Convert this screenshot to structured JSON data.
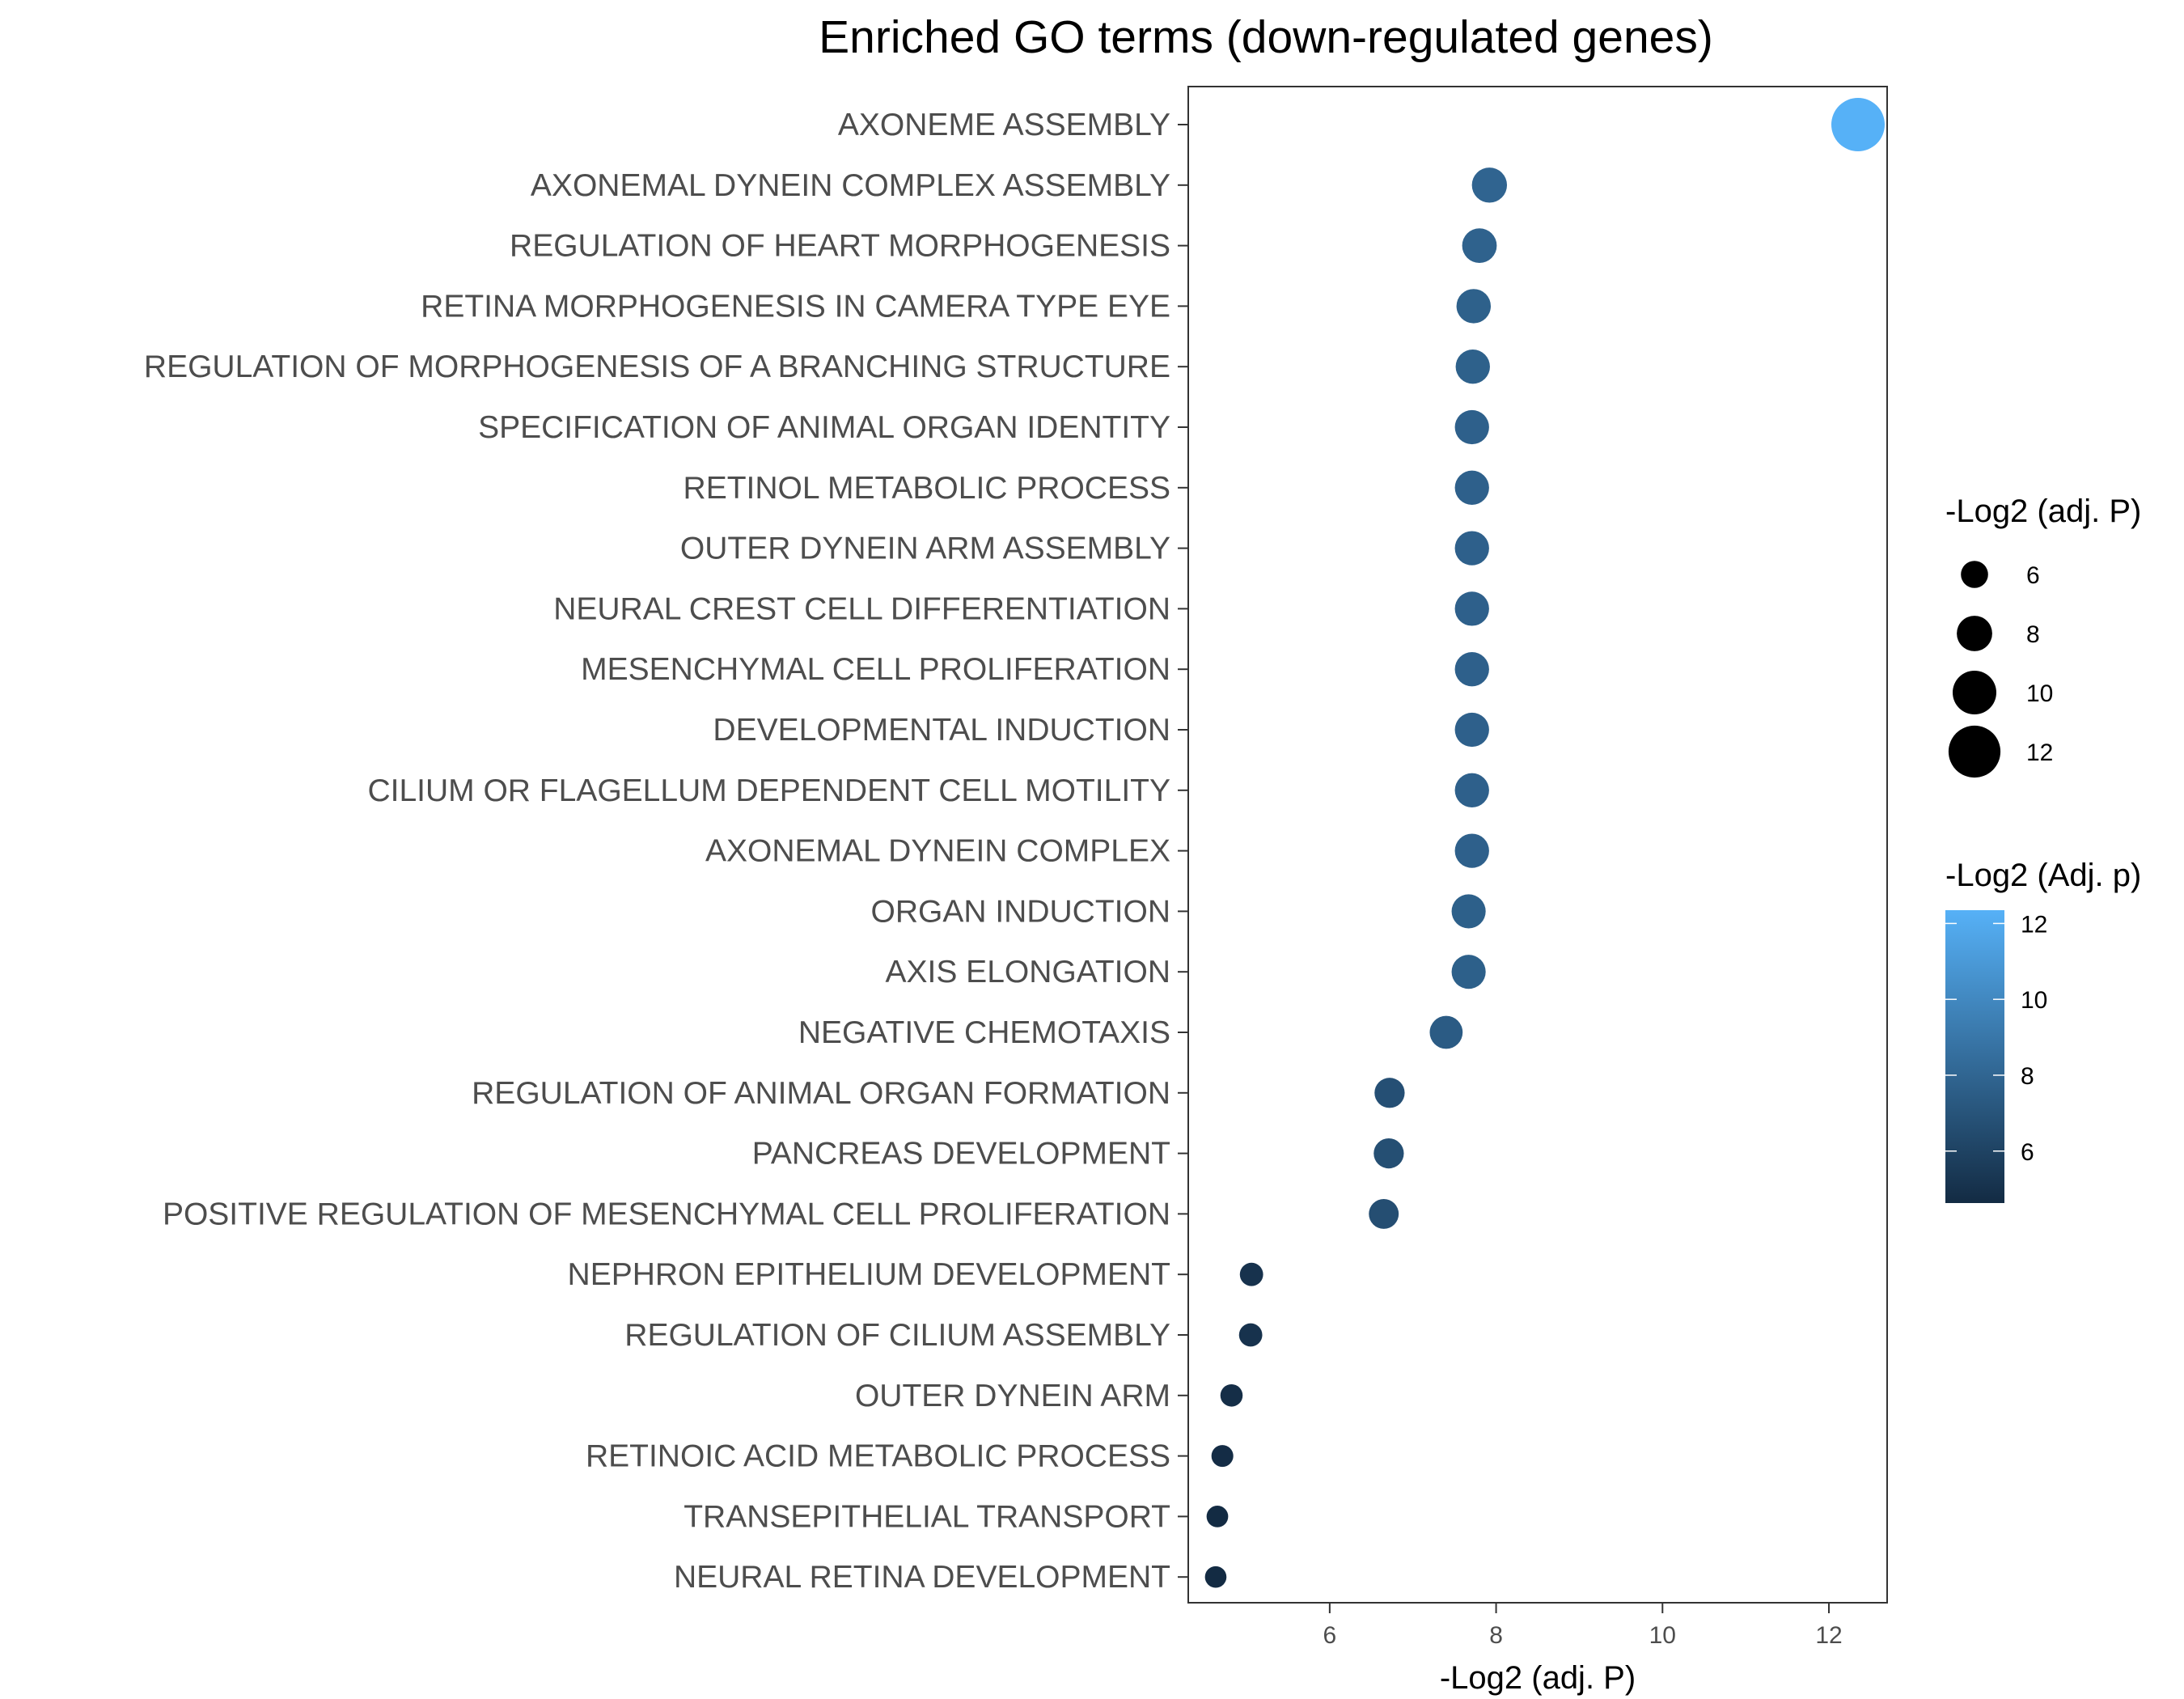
{
  "chart_data": {
    "type": "scatter",
    "title": "Enriched GO terms (down-regulated genes)",
    "xlabel": "-Log2 (adj. P)",
    "xlim": [
      4.3,
      12.7
    ],
    "xticks": [
      6,
      8,
      10,
      12
    ],
    "grid": false,
    "colors": {
      "low": "#132B43",
      "high": "#56B1F7"
    },
    "points": [
      {
        "term": "AXONEME ASSEMBLY",
        "x": 12.35
      },
      {
        "term": "AXONEMAL DYNEIN COMPLEX ASSEMBLY",
        "x": 7.92
      },
      {
        "term": "REGULATION OF HEART MORPHOGENESIS",
        "x": 7.8
      },
      {
        "term": "RETINA MORPHOGENESIS IN CAMERA TYPE EYE",
        "x": 7.73
      },
      {
        "term": "REGULATION OF MORPHOGENESIS OF A BRANCHING STRUCTURE",
        "x": 7.72
      },
      {
        "term": "SPECIFICATION OF ANIMAL ORGAN IDENTITY",
        "x": 7.71
      },
      {
        "term": "RETINOL METABOLIC PROCESS",
        "x": 7.71
      },
      {
        "term": "OUTER DYNEIN ARM ASSEMBLY",
        "x": 7.71
      },
      {
        "term": "NEURAL CREST CELL DIFFERENTIATION",
        "x": 7.71
      },
      {
        "term": "MESENCHYMAL CELL PROLIFERATION",
        "x": 7.71
      },
      {
        "term": "DEVELOPMENTAL INDUCTION",
        "x": 7.71
      },
      {
        "term": "CILIUM OR FLAGELLUM DEPENDENT CELL MOTILITY",
        "x": 7.71
      },
      {
        "term": "AXONEMAL DYNEIN COMPLEX",
        "x": 7.71
      },
      {
        "term": "ORGAN INDUCTION",
        "x": 7.67
      },
      {
        "term": "AXIS ELONGATION",
        "x": 7.67
      },
      {
        "term": "NEGATIVE CHEMOTAXIS",
        "x": 7.4
      },
      {
        "term": "REGULATION OF ANIMAL ORGAN FORMATION",
        "x": 6.72
      },
      {
        "term": "PANCREAS DEVELOPMENT",
        "x": 6.71
      },
      {
        "term": "POSITIVE REGULATION OF MESENCHYMAL CELL PROLIFERATION",
        "x": 6.65
      },
      {
        "term": "NEPHRON EPITHELIUM DEVELOPMENT",
        "x": 5.06
      },
      {
        "term": "REGULATION OF CILIUM ASSEMBLY",
        "x": 5.05
      },
      {
        "term": "OUTER DYNEIN ARM",
        "x": 4.82
      },
      {
        "term": "RETINOIC ACID METABOLIC PROCESS",
        "x": 4.71
      },
      {
        "term": "TRANSEPITHELIAL TRANSPORT",
        "x": 4.65
      },
      {
        "term": "NEURAL RETINA DEVELOPMENT",
        "x": 4.63
      }
    ],
    "legend_size": {
      "title": "-Log2 (adj. P)",
      "values": [
        6,
        8,
        10,
        12
      ]
    },
    "legend_color": {
      "title": "-Log2 (Adj. p)",
      "ticks": [
        6,
        8,
        10,
        12
      ],
      "range": [
        4.63,
        12.35
      ]
    },
    "legend_placement": "right"
  }
}
